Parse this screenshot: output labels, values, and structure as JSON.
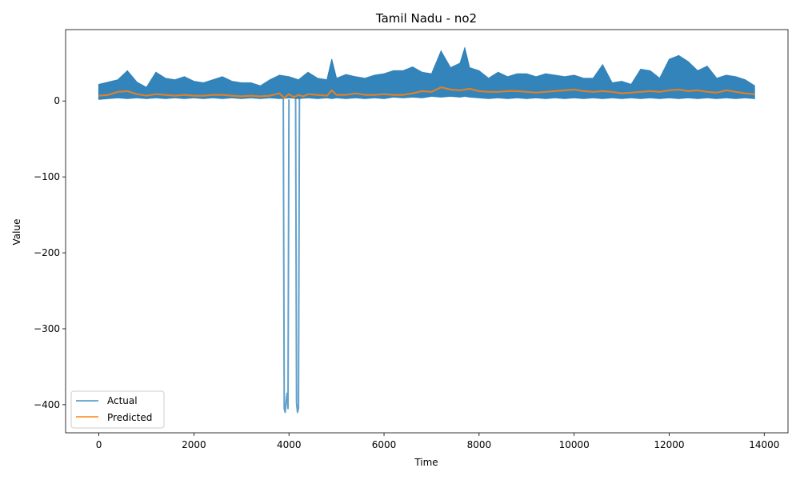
{
  "chart_data": {
    "type": "line",
    "title": "Tamil Nadu - no2",
    "xlabel": "Time",
    "ylabel": "Value",
    "xlim": [
      -700,
      14500
    ],
    "ylim": [
      -437,
      94
    ],
    "xticks": [
      0,
      2000,
      4000,
      6000,
      8000,
      10000,
      12000,
      14000
    ],
    "xtick_labels": [
      "0",
      "2000",
      "4000",
      "6000",
      "8000",
      "10000",
      "12000",
      "14000"
    ],
    "yticks": [
      0,
      -100,
      -200,
      -300,
      -400
    ],
    "ytick_labels": [
      "0",
      "−100",
      "−200",
      "−300",
      "−400"
    ],
    "grid": false,
    "legend_position": "lower-left",
    "colors": {
      "actual": "#1f77b4",
      "predicted": "#ff7f0e"
    },
    "series": [
      {
        "name": "Actual",
        "envelope": {
          "x": [
            0,
            200,
            400,
            600,
            800,
            1000,
            1200,
            1400,
            1600,
            1800,
            2000,
            2200,
            2400,
            2600,
            2800,
            3000,
            3200,
            3400,
            3600,
            3800,
            4000,
            4200,
            4400,
            4600,
            4800,
            4900,
            5000,
            5200,
            5400,
            5600,
            5800,
            6000,
            6200,
            6400,
            6600,
            6800,
            7000,
            7200,
            7400,
            7600,
            7700,
            7800,
            8000,
            8200,
            8400,
            8600,
            8800,
            9000,
            9200,
            9400,
            9600,
            9800,
            10000,
            10200,
            10400,
            10600,
            10800,
            11000,
            11200,
            11400,
            11600,
            11800,
            12000,
            12200,
            12400,
            12600,
            12800,
            13000,
            13200,
            13400,
            13600,
            13800
          ],
          "max": [
            22,
            25,
            28,
            40,
            25,
            18,
            38,
            30,
            28,
            32,
            26,
            24,
            28,
            32,
            26,
            24,
            24,
            20,
            28,
            34,
            32,
            28,
            38,
            30,
            28,
            55,
            30,
            35,
            32,
            30,
            34,
            36,
            40,
            40,
            45,
            38,
            36,
            66,
            44,
            50,
            70,
            44,
            40,
            30,
            38,
            32,
            36,
            36,
            32,
            36,
            34,
            32,
            34,
            30,
            30,
            48,
            24,
            26,
            22,
            42,
            40,
            30,
            55,
            60,
            52,
            40,
            46,
            30,
            34,
            32,
            28,
            20
          ],
          "min": [
            2,
            3,
            4,
            3,
            4,
            3,
            4,
            3,
            4,
            3,
            4,
            3,
            4,
            3,
            4,
            3,
            4,
            3,
            4,
            3,
            4,
            3,
            4,
            3,
            4,
            3,
            4,
            3,
            4,
            3,
            4,
            3,
            5,
            4,
            5,
            4,
            6,
            5,
            6,
            5,
            6,
            5,
            4,
            3,
            4,
            3,
            4,
            3,
            4,
            3,
            4,
            3,
            4,
            3,
            4,
            3,
            4,
            3,
            4,
            3,
            4,
            3,
            4,
            3,
            4,
            3,
            4,
            3,
            4,
            3,
            4,
            3
          ]
        },
        "spikes": [
          {
            "x": [
              3880,
              3900,
              3920,
              3940,
              3960,
              3980,
              4000
            ],
            "y": [
              5,
              -405,
              -410,
              -395,
              -385,
              -405,
              2
            ]
          },
          {
            "x": [
              4140,
              4160,
              4180,
              4200,
              4220
            ],
            "y": [
              5,
              -398,
              -410,
              -405,
              3
            ]
          }
        ]
      },
      {
        "name": "Predicted",
        "x": [
          0,
          200,
          400,
          600,
          800,
          1000,
          1200,
          1400,
          1600,
          1800,
          2000,
          2200,
          2400,
          2600,
          2800,
          3000,
          3200,
          3400,
          3600,
          3800,
          3900,
          4000,
          4100,
          4200,
          4300,
          4400,
          4600,
          4800,
          4900,
          5000,
          5200,
          5400,
          5600,
          5800,
          6000,
          6200,
          6400,
          6600,
          6800,
          7000,
          7200,
          7400,
          7600,
          7800,
          8000,
          8200,
          8400,
          8600,
          8800,
          9000,
          9200,
          9400,
          9600,
          9800,
          10000,
          10200,
          10400,
          10600,
          10800,
          11000,
          11200,
          11400,
          11600,
          11800,
          12000,
          12200,
          12400,
          12600,
          12800,
          13000,
          13200,
          13400,
          13600,
          13800
        ],
        "y": [
          7,
          8,
          12,
          13,
          9,
          7,
          9,
          8,
          7,
          8,
          7,
          7,
          8,
          8,
          7,
          6,
          7,
          6,
          7,
          10,
          4,
          9,
          5,
          8,
          6,
          9,
          8,
          7,
          14,
          8,
          8,
          10,
          8,
          8,
          9,
          8,
          8,
          10,
          13,
          12,
          18,
          15,
          14,
          16,
          13,
          12,
          12,
          13,
          13,
          12,
          11,
          12,
          13,
          14,
          15,
          13,
          12,
          13,
          12,
          10,
          11,
          12,
          13,
          12,
          14,
          15,
          13,
          14,
          12,
          11,
          14,
          12,
          10,
          9
        ]
      }
    ]
  }
}
